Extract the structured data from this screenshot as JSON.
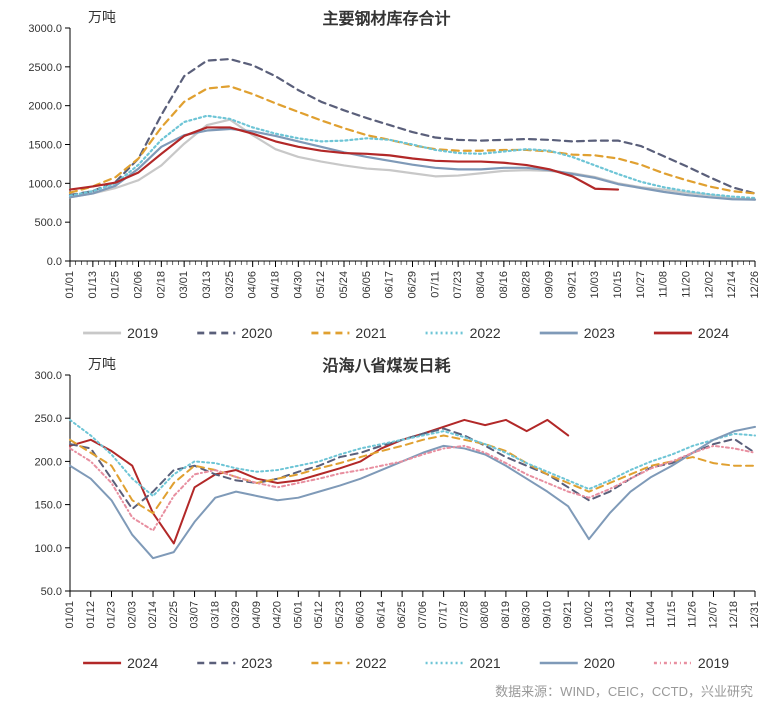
{
  "chart1": {
    "type": "line",
    "title": "主要钢材库存合计",
    "title_fontsize": 16,
    "title_color": "#333333",
    "ylabel": "万吨",
    "ylabel_fontsize": 14,
    "ylabel_color": "#333333",
    "ylim": [
      0,
      3000
    ],
    "ytick_step": 500,
    "yticks": [
      "0.0",
      "500.0",
      "1000.0",
      "1500.0",
      "2000.0",
      "2500.0",
      "3000.0"
    ],
    "xticks": [
      "01/01",
      "01/13",
      "01/25",
      "02/06",
      "02/18",
      "03/01",
      "03/13",
      "03/25",
      "04/06",
      "04/18",
      "04/30",
      "05/12",
      "05/24",
      "06/05",
      "06/17",
      "06/29",
      "07/11",
      "07/23",
      "08/04",
      "08/16",
      "08/28",
      "09/09",
      "09/21",
      "10/03",
      "10/15",
      "10/27",
      "11/08",
      "11/20",
      "12/02",
      "12/14",
      "12/26"
    ],
    "tick_fontsize": 11,
    "tick_color": "#333333",
    "background_color": "#ffffff",
    "axis_color": "#000000",
    "line_width": 2.2,
    "legend_fontsize": 14,
    "series": [
      {
        "name": "2019",
        "color": "#c8c8c8",
        "dash": "none",
        "values": [
          820,
          870,
          940,
          1040,
          1230,
          1510,
          1750,
          1820,
          1620,
          1440,
          1340,
          1280,
          1230,
          1190,
          1170,
          1130,
          1090,
          1100,
          1130,
          1160,
          1170,
          1160,
          1130,
          1080,
          1000,
          950,
          920,
          880,
          850,
          810,
          790
        ]
      },
      {
        "name": "2020",
        "color": "#5a5f7a",
        "dash": "7,5",
        "values": [
          850,
          900,
          1020,
          1320,
          1880,
          2380,
          2580,
          2600,
          2520,
          2380,
          2200,
          2050,
          1940,
          1840,
          1750,
          1660,
          1590,
          1560,
          1550,
          1560,
          1570,
          1560,
          1540,
          1550,
          1550,
          1480,
          1350,
          1220,
          1080,
          950,
          870
        ]
      },
      {
        "name": "2021",
        "color": "#e0a030",
        "dash": "7,5",
        "values": [
          880,
          960,
          1080,
          1320,
          1720,
          2050,
          2220,
          2250,
          2150,
          2030,
          1920,
          1810,
          1710,
          1620,
          1560,
          1490,
          1440,
          1420,
          1420,
          1430,
          1430,
          1410,
          1370,
          1360,
          1320,
          1240,
          1130,
          1040,
          960,
          900,
          870
        ]
      },
      {
        "name": "2022",
        "color": "#6ec5d6",
        "dash": "2,3",
        "values": [
          840,
          900,
          1000,
          1240,
          1560,
          1790,
          1870,
          1830,
          1720,
          1640,
          1580,
          1540,
          1550,
          1580,
          1560,
          1500,
          1430,
          1390,
          1380,
          1410,
          1440,
          1420,
          1340,
          1230,
          1120,
          1020,
          950,
          900,
          860,
          830,
          810
        ]
      },
      {
        "name": "2023",
        "color": "#7f9ab8",
        "dash": "none",
        "values": [
          820,
          870,
          970,
          1190,
          1470,
          1620,
          1680,
          1700,
          1670,
          1610,
          1540,
          1470,
          1400,
          1340,
          1290,
          1240,
          1200,
          1180,
          1180,
          1200,
          1200,
          1170,
          1120,
          1070,
          990,
          940,
          890,
          850,
          820,
          795,
          790
        ]
      },
      {
        "name": "2024",
        "color": "#b22828",
        "dash": "none",
        "values": [
          920,
          960,
          1010,
          1140,
          1380,
          1610,
          1720,
          1720,
          1640,
          1540,
          1470,
          1420,
          1390,
          1380,
          1360,
          1320,
          1290,
          1280,
          1280,
          1265,
          1235,
          1180,
          1090,
          930,
          920,
          null,
          null,
          null,
          null,
          null,
          null
        ]
      }
    ]
  },
  "chart2": {
    "type": "line",
    "title": "沿海八省煤炭日耗",
    "title_fontsize": 16,
    "title_color": "#333333",
    "ylabel": "万吨",
    "ylabel_fontsize": 14,
    "ylabel_color": "#333333",
    "ylim": [
      50,
      300
    ],
    "ytick_step": 50,
    "yticks": [
      "50.0",
      "100.0",
      "150.0",
      "200.0",
      "250.0",
      "300.0"
    ],
    "xticks": [
      "01/01",
      "01/12",
      "01/23",
      "02/03",
      "02/14",
      "02/25",
      "03/07",
      "03/18",
      "03/29",
      "04/09",
      "04/20",
      "05/01",
      "05/12",
      "05/23",
      "06/03",
      "06/14",
      "06/25",
      "07/06",
      "07/17",
      "07/28",
      "08/08",
      "08/19",
      "08/30",
      "09/10",
      "09/21",
      "10/02",
      "10/13",
      "10/24",
      "11/04",
      "11/15",
      "11/26",
      "12/07",
      "12/18",
      "12/31"
    ],
    "tick_fontsize": 11,
    "tick_color": "#333333",
    "background_color": "#ffffff",
    "axis_color": "#000000",
    "line_width": 2.0,
    "legend_fontsize": 14,
    "series": [
      {
        "name": "2024",
        "color": "#b22828",
        "dash": "none",
        "values": [
          218,
          225,
          212,
          195,
          140,
          105,
          170,
          185,
          190,
          180,
          175,
          178,
          185,
          192,
          200,
          215,
          225,
          232,
          240,
          248,
          242,
          248,
          235,
          248,
          230,
          null,
          null,
          null,
          null,
          null,
          null,
          null,
          null,
          null
        ]
      },
      {
        "name": "2023",
        "color": "#5a5f7a",
        "dash": "7,5",
        "values": [
          220,
          215,
          180,
          145,
          165,
          190,
          195,
          185,
          178,
          175,
          180,
          188,
          195,
          205,
          210,
          218,
          225,
          232,
          238,
          230,
          218,
          205,
          195,
          185,
          170,
          155,
          165,
          180,
          193,
          198,
          210,
          220,
          226,
          210
        ]
      },
      {
        "name": "2022",
        "color": "#e0a030",
        "dash": "7,5",
        "values": [
          225,
          210,
          195,
          155,
          140,
          175,
          195,
          190,
          182,
          175,
          180,
          185,
          192,
          198,
          205,
          212,
          218,
          225,
          230,
          225,
          220,
          212,
          198,
          185,
          175,
          165,
          175,
          185,
          195,
          200,
          205,
          198,
          195,
          195
        ]
      },
      {
        "name": "2021",
        "color": "#6ec5d6",
        "dash": "2,3",
        "values": [
          248,
          230,
          208,
          180,
          160,
          185,
          200,
          198,
          192,
          188,
          190,
          195,
          200,
          208,
          215,
          220,
          225,
          230,
          235,
          228,
          220,
          210,
          198,
          188,
          178,
          168,
          178,
          190,
          200,
          208,
          218,
          225,
          232,
          230
        ]
      },
      {
        "name": "2020",
        "color": "#7f9ab8",
        "dash": "none",
        "values": [
          195,
          180,
          155,
          115,
          88,
          95,
          130,
          158,
          165,
          160,
          155,
          158,
          165,
          172,
          180,
          190,
          200,
          210,
          218,
          215,
          208,
          195,
          180,
          165,
          148,
          110,
          140,
          165,
          182,
          195,
          210,
          225,
          235,
          240
        ]
      },
      {
        "name": "2019",
        "color": "#e88fa0",
        "dash": "3,3,1,3",
        "values": [
          215,
          200,
          175,
          135,
          120,
          160,
          185,
          190,
          182,
          175,
          170,
          175,
          180,
          186,
          190,
          195,
          200,
          208,
          215,
          218,
          210,
          198,
          185,
          175,
          165,
          158,
          168,
          180,
          192,
          200,
          210,
          218,
          215,
          210
        ]
      }
    ]
  },
  "source_label": "数据来源：WIND，CEIC，CCTD，兴业研究"
}
